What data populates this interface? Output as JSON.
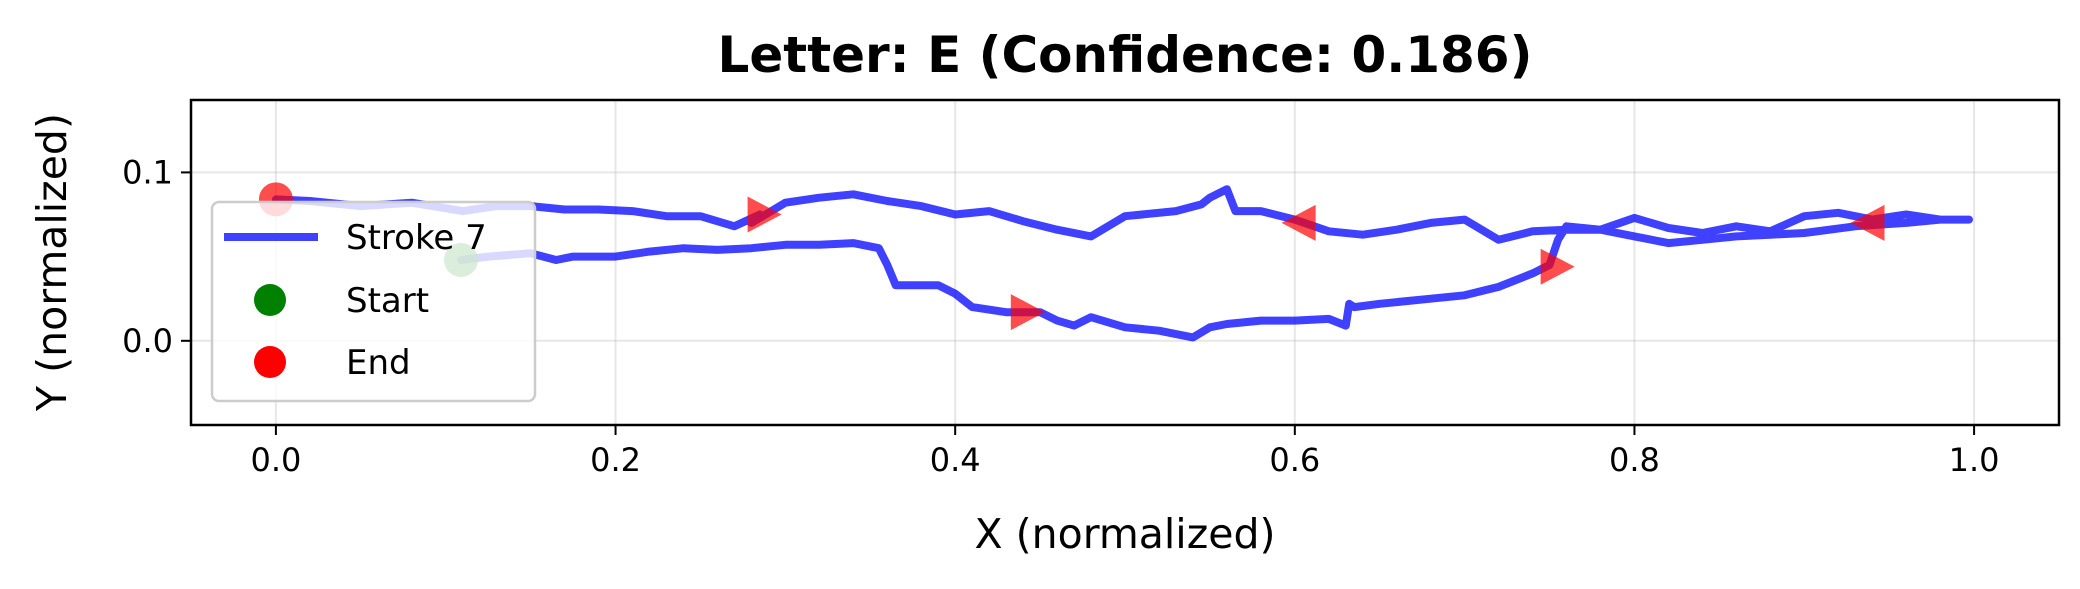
{
  "chart_data": {
    "type": "line",
    "title": "Letter: E (Confidence: 0.186)",
    "xlabel": "X (normalized)",
    "ylabel": "Y (normalized)",
    "xlim": [
      -0.05,
      1.05
    ],
    "ylim": [
      -0.05,
      0.143
    ],
    "xticks": [
      0.0,
      0.2,
      0.4,
      0.6,
      0.8,
      1.0
    ],
    "xtick_labels": [
      "0.0",
      "0.2",
      "0.4",
      "0.6",
      "0.8",
      "1.0"
    ],
    "yticks": [
      0.0,
      0.1
    ],
    "ytick_labels": [
      "0.0",
      "0.1"
    ],
    "grid": true,
    "legend_position": "center-left",
    "series": [
      {
        "name": "Stroke 7",
        "color": "#0000ff",
        "x": [
          0.109,
          0.125,
          0.15,
          0.165,
          0.175,
          0.2,
          0.22,
          0.24,
          0.26,
          0.28,
          0.3,
          0.32,
          0.34,
          0.355,
          0.36,
          0.365,
          0.37,
          0.39,
          0.4,
          0.41,
          0.43,
          0.45,
          0.46,
          0.47,
          0.48,
          0.5,
          0.52,
          0.54,
          0.55,
          0.56,
          0.58,
          0.6,
          0.62,
          0.63,
          0.632,
          0.635,
          0.65,
          0.68,
          0.7,
          0.72,
          0.74,
          0.75,
          0.755,
          0.76,
          0.78,
          0.8,
          0.82,
          0.84,
          0.86,
          0.88,
          0.9,
          0.93,
          0.96,
          0.98,
          0.997,
          0.98,
          0.96,
          0.94,
          0.92,
          0.9,
          0.88,
          0.86,
          0.84,
          0.82,
          0.8,
          0.78,
          0.76,
          0.74,
          0.72,
          0.7,
          0.68,
          0.66,
          0.64,
          0.62,
          0.6,
          0.58,
          0.565,
          0.56,
          0.56,
          0.55,
          0.545,
          0.53,
          0.5,
          0.48,
          0.46,
          0.44,
          0.42,
          0.4,
          0.38,
          0.36,
          0.34,
          0.32,
          0.3,
          0.28,
          0.285,
          0.27,
          0.25,
          0.23,
          0.21,
          0.19,
          0.17,
          0.15,
          0.13,
          0.11,
          0.08,
          0.05,
          0.02,
          0.0
        ],
        "y": [
          0.048,
          0.05,
          0.052,
          0.048,
          0.05,
          0.05,
          0.053,
          0.055,
          0.054,
          0.055,
          0.057,
          0.057,
          0.058,
          0.055,
          0.045,
          0.033,
          0.033,
          0.033,
          0.028,
          0.02,
          0.017,
          0.017,
          0.012,
          0.009,
          0.014,
          0.008,
          0.006,
          0.002,
          0.008,
          0.01,
          0.012,
          0.012,
          0.013,
          0.009,
          0.022,
          0.02,
          0.022,
          0.025,
          0.027,
          0.032,
          0.04,
          0.045,
          0.06,
          0.068,
          0.066,
          0.062,
          0.058,
          0.06,
          0.062,
          0.063,
          0.064,
          0.068,
          0.07,
          0.072,
          0.072,
          0.072,
          0.075,
          0.072,
          0.076,
          0.074,
          0.065,
          0.068,
          0.064,
          0.067,
          0.073,
          0.066,
          0.066,
          0.065,
          0.06,
          0.072,
          0.07,
          0.066,
          0.063,
          0.065,
          0.072,
          0.077,
          0.077,
          0.09,
          0.09,
          0.085,
          0.081,
          0.077,
          0.074,
          0.062,
          0.066,
          0.071,
          0.077,
          0.075,
          0.08,
          0.083,
          0.087,
          0.085,
          0.082,
          0.07,
          0.075,
          0.068,
          0.074,
          0.074,
          0.077,
          0.078,
          0.078,
          0.08,
          0.08,
          0.077,
          0.082,
          0.08,
          0.083,
          0.084
        ]
      }
    ],
    "start": {
      "name": "Start",
      "x": 0.109,
      "y": 0.048,
      "color": "#008000"
    },
    "end": {
      "name": "End",
      "x": 0.0,
      "y": 0.084,
      "color": "#ff0000"
    },
    "direction_markers": {
      "color": "#ff0000",
      "points": [
        {
          "x": 0.286,
          "y": 0.075,
          "dir": "right"
        },
        {
          "x": 0.441,
          "y": 0.017,
          "dir": "right"
        },
        {
          "x": 0.604,
          "y": 0.07,
          "dir": "left"
        },
        {
          "x": 0.753,
          "y": 0.044,
          "dir": "right"
        },
        {
          "x": 0.939,
          "y": 0.07,
          "dir": "left"
        }
      ]
    }
  }
}
